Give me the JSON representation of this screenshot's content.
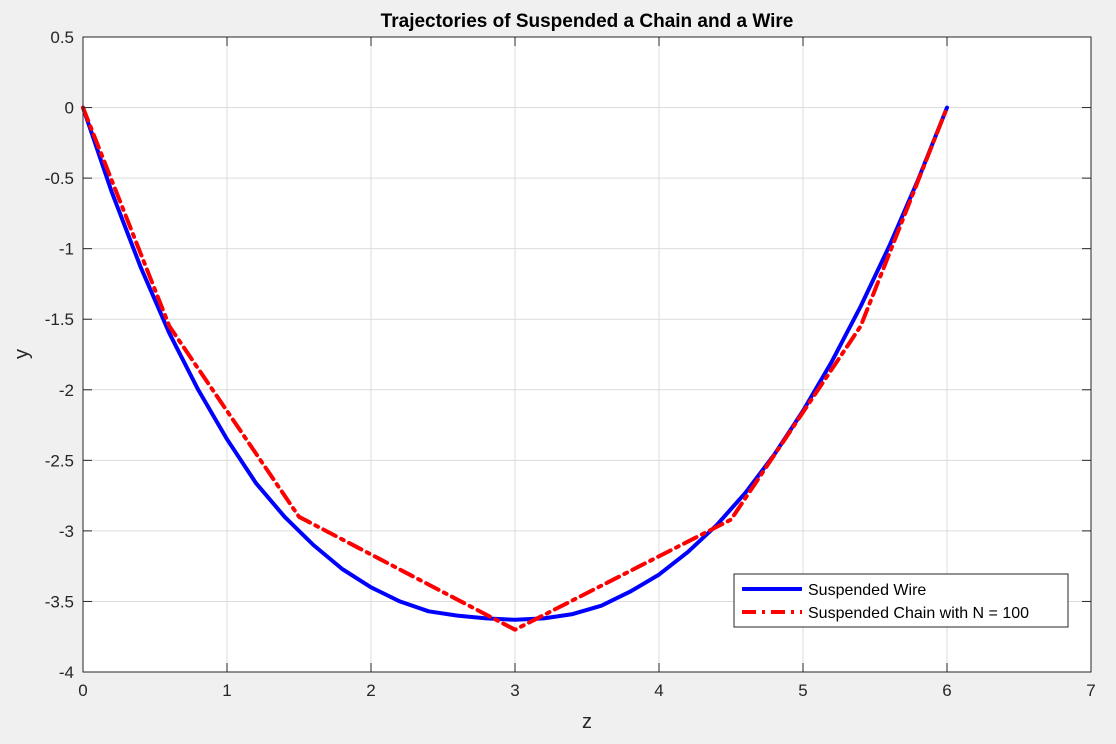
{
  "chart_data": {
    "type": "line",
    "title": "Trajectories of Suspended a Chain and a Wire",
    "xlabel": "z",
    "ylabel": "y",
    "xlim": [
      0,
      7
    ],
    "ylim": [
      -4,
      0.5
    ],
    "xticks": [
      "0",
      "1",
      "2",
      "3",
      "4",
      "5",
      "6",
      "7"
    ],
    "yticks": [
      "0.5",
      "0",
      "-0.5",
      "-1",
      "-1.5",
      "-2",
      "-2.5",
      "-3",
      "-3.5",
      "-4"
    ],
    "grid": true,
    "legend_position": "bottom-right",
    "series": [
      {
        "name": "Suspended Wire",
        "color": "#0000ff",
        "style": "solid",
        "x": [
          0,
          0.2,
          0.4,
          0.6,
          0.8,
          1.0,
          1.2,
          1.4,
          1.6,
          1.8,
          2.0,
          2.2,
          2.4,
          2.6,
          2.8,
          3.0,
          3.2,
          3.4,
          3.6,
          3.8,
          4.0,
          4.2,
          4.4,
          4.6,
          4.8,
          5.0,
          5.2,
          5.4,
          5.6,
          5.8,
          6.0
        ],
        "y": [
          0,
          -0.6,
          -1.13,
          -1.6,
          -2.0,
          -2.35,
          -2.66,
          -2.9,
          -3.1,
          -3.27,
          -3.4,
          -3.5,
          -3.57,
          -3.6,
          -3.62,
          -3.63,
          -3.62,
          -3.59,
          -3.53,
          -3.43,
          -3.31,
          -3.15,
          -2.96,
          -2.73,
          -2.46,
          -2.15,
          -1.8,
          -1.41,
          -0.98,
          -0.51,
          0
        ]
      },
      {
        "name": "Suspended Chain with N = 100",
        "color": "#ff0000",
        "style": "dash-dot",
        "x": [
          0,
          0.6,
          1.5,
          3.0,
          4.5,
          5.4,
          6.0
        ],
        "y": [
          0,
          -1.55,
          -2.9,
          -3.7,
          -2.92,
          -1.55,
          0
        ]
      }
    ]
  }
}
